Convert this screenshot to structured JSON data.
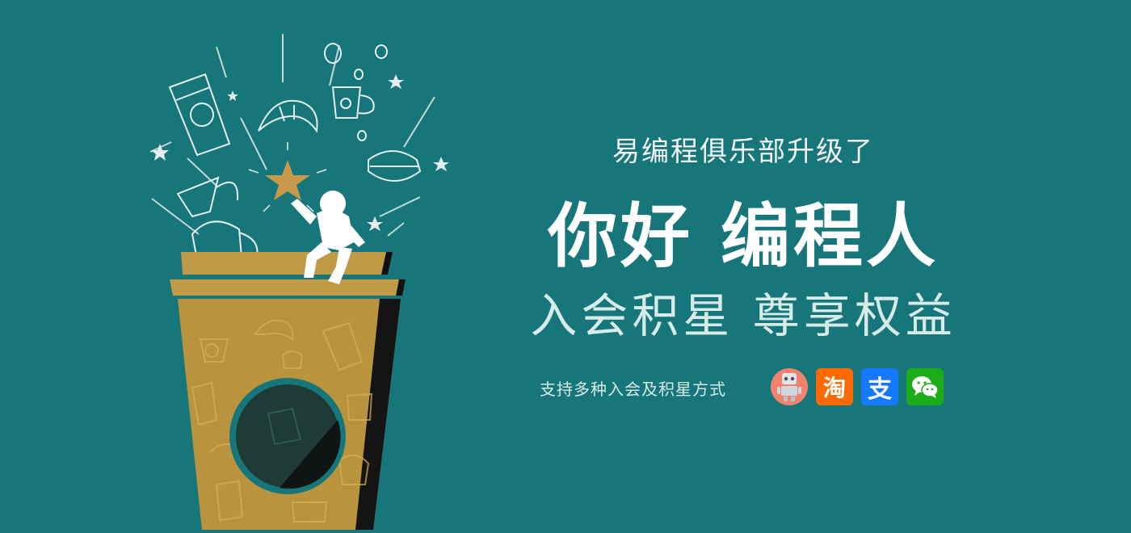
{
  "banner": {
    "subtitle": "易编程俱乐部升级了",
    "headline": "你好  编程人",
    "tagline": "入会积星  尊享权益",
    "support_text": "支持多种入会及积星方式"
  },
  "payment_icons": [
    {
      "name": "robot-icon",
      "label": ""
    },
    {
      "name": "taobao-icon",
      "label": "淘"
    },
    {
      "name": "alipay-icon",
      "label": "支"
    },
    {
      "name": "wechat-icon",
      "label": ""
    }
  ],
  "colors": {
    "background": "#16767a",
    "cup": "#b9933e",
    "star": "#c9994b",
    "line_art": "#e5eef0",
    "window_dark": "#1f3b35"
  }
}
